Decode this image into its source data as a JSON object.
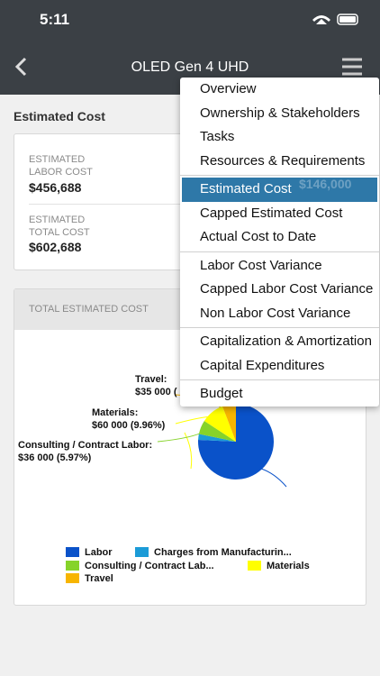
{
  "status_bar": {
    "time": "5:11"
  },
  "header": {
    "title": "OLED Gen 4 UHD"
  },
  "section_title": "Estimated Cost",
  "summary": {
    "items": [
      {
        "label_lines": [
          "ESTIMATED",
          "LABOR COST"
        ],
        "value": "$456,688"
      },
      {
        "label_lines": [
          "ESTIMATED",
          "TOTAL COST"
        ],
        "value": "$602,688"
      }
    ],
    "hidden_value": "$146,000"
  },
  "chart_card": {
    "title": "TOTAL ESTIMATED COST"
  },
  "chart_data": {
    "type": "pie",
    "categories": [
      "Labor",
      "Charges from Manufacturin...",
      "Consulting / Contract Lab...",
      "Materials",
      "Travel"
    ],
    "values": [
      456688,
      15000,
      36000,
      60000,
      35000
    ],
    "colors": [
      "#0a52c9",
      "#1b9bd7",
      "#86d32a",
      "#ffff00",
      "#f7b500"
    ],
    "label_names": [
      null,
      null,
      "Consulting / Contract Labor:",
      "Materials:",
      "Travel:"
    ],
    "value_labels": [
      null,
      null,
      "$36 000 (5.97%)",
      "$60 000 (9.96%)",
      "$35 000 ("
    ]
  },
  "menu": {
    "groups": [
      [
        "Overview",
        "Ownership & Stakeholders",
        "Tasks",
        "Resources & Requirements"
      ],
      [
        "Estimated Cost",
        "Capped Estimated Cost",
        "Actual Cost to Date"
      ],
      [
        "Labor Cost Variance",
        "Capped Labor Cost Variance",
        "Non Labor Cost Variance"
      ],
      [
        "Capitalization & Amortization",
        "Capital Expenditures"
      ],
      [
        "Budget"
      ]
    ],
    "selected": "Estimated Cost"
  }
}
